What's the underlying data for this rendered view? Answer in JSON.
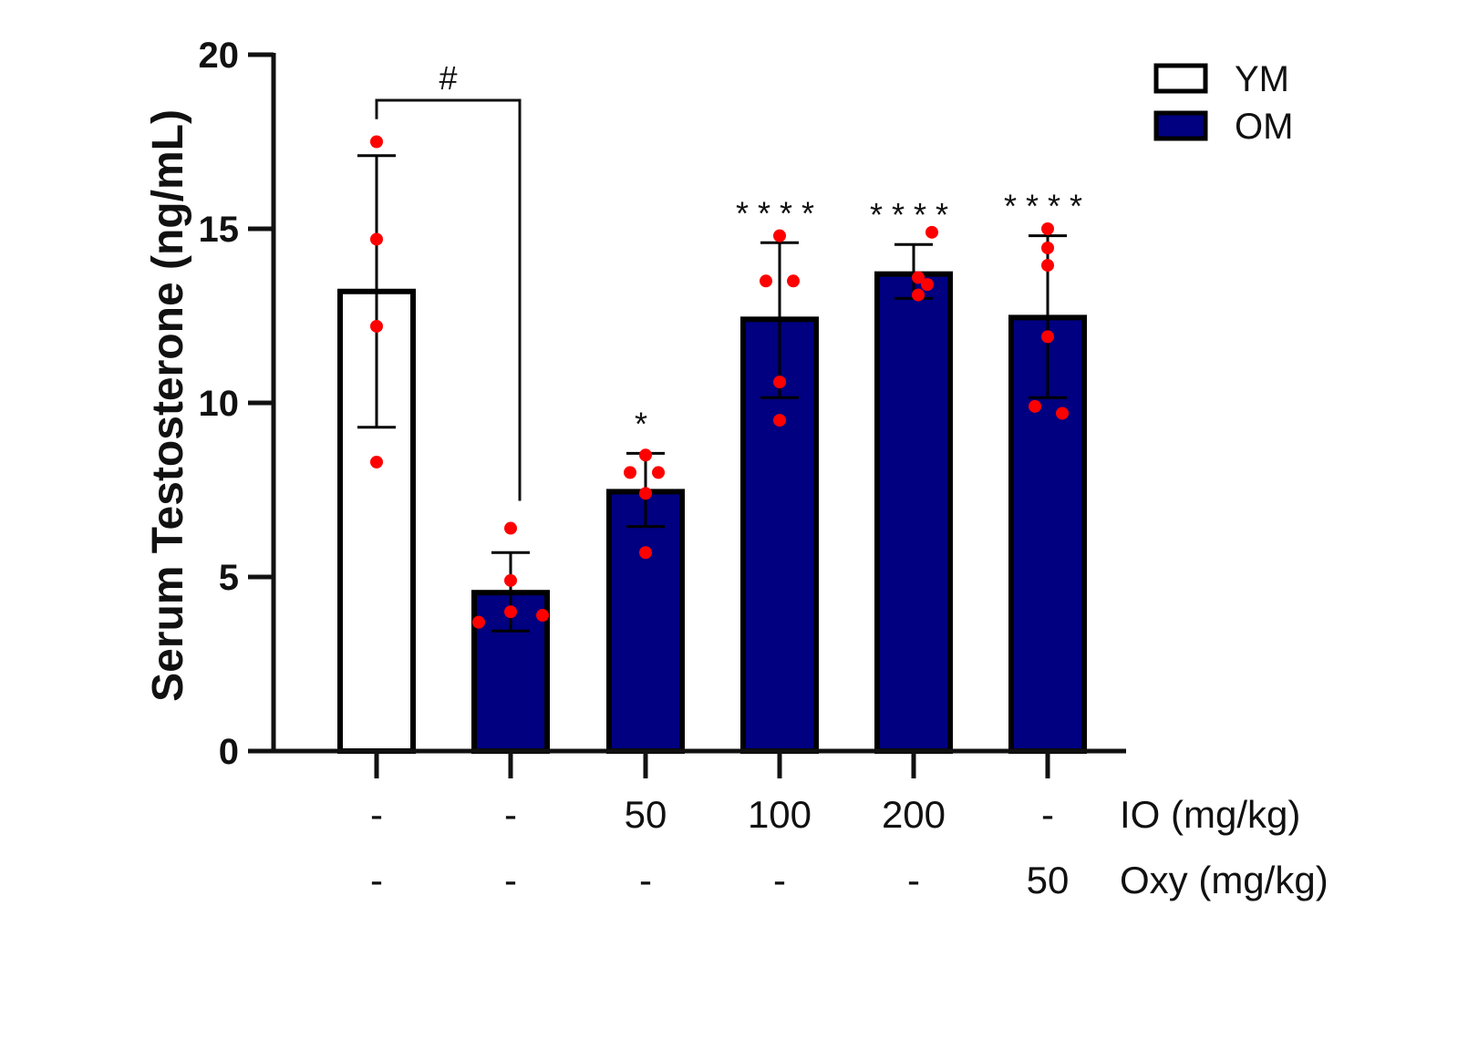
{
  "chart_data": {
    "type": "bar",
    "title": "",
    "ylabel": "Serum Testosterone (ng/mL)",
    "xlabel": "",
    "ylim": [
      0,
      20
    ],
    "yticks": [
      "0",
      "5",
      "10",
      "15",
      "20"
    ],
    "grid": false,
    "legend_position": "top-right",
    "legend": [
      {
        "name": "YM",
        "color": "#ffffff"
      },
      {
        "name": "OM",
        "color": "#000080"
      }
    ],
    "condition_rows": [
      {
        "label": "IO (mg/kg)",
        "values": [
          "-",
          "-",
          "50",
          "100",
          "200",
          "-"
        ]
      },
      {
        "label": "Oxy (mg/kg)",
        "values": [
          "-",
          "-",
          "-",
          "-",
          "-",
          "50"
        ]
      }
    ],
    "bars": [
      {
        "group": "YM",
        "mean": 13.2,
        "error": [
          9.3,
          17.1
        ],
        "points": [
          17.5,
          14.7,
          12.2,
          8.3
        ],
        "significance": ""
      },
      {
        "group": "OM",
        "mean": 4.55,
        "error": [
          3.45,
          5.7
        ],
        "points": [
          6.4,
          4.9,
          4.0,
          3.7,
          3.9
        ],
        "significance": ""
      },
      {
        "group": "OM",
        "mean": 7.45,
        "error": [
          6.45,
          8.55
        ],
        "points": [
          8.5,
          8.0,
          8.0,
          7.4,
          5.7
        ],
        "significance": "*"
      },
      {
        "group": "OM",
        "mean": 12.4,
        "error": [
          10.15,
          14.6
        ],
        "points": [
          14.8,
          13.5,
          13.5,
          10.6,
          9.5
        ],
        "significance": "****"
      },
      {
        "group": "OM",
        "mean": 13.7,
        "error": [
          13.0,
          14.55
        ],
        "points": [
          14.9,
          13.6,
          13.4,
          13.1
        ],
        "significance": "****"
      },
      {
        "group": "OM",
        "mean": 12.45,
        "error": [
          10.15,
          14.8
        ],
        "points": [
          15.0,
          14.45,
          13.95,
          11.9,
          9.9,
          9.7
        ],
        "significance": "****"
      }
    ],
    "comparison": {
      "from": 0,
      "to": 1,
      "label": "#"
    },
    "point_color": "#ff0000"
  }
}
